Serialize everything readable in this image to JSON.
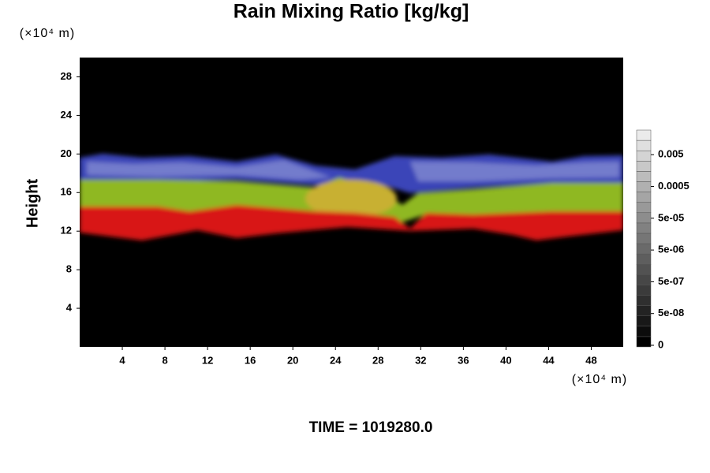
{
  "chart_data": {
    "type": "field",
    "title": "Rain Mixing Ratio [kg/kg]",
    "y_label": "Height",
    "y_unit": "(×10⁴ m)",
    "x_unit": "(×10⁴ m)",
    "xlim": [
      0,
      51
    ],
    "xticks": [
      4,
      8,
      12,
      16,
      20,
      24,
      28,
      32,
      36,
      40,
      44,
      48
    ],
    "ylim": [
      0,
      30
    ],
    "yticks": [
      4,
      8,
      12,
      16,
      20,
      24,
      28
    ],
    "colorbar_ticks": [
      0,
      {
        "value": 5e-08,
        "label": "5e-08"
      },
      {
        "value": 5e-07,
        "label": "5e-07"
      },
      {
        "value": 5e-06,
        "label": "5e-06"
      },
      {
        "value": 5e-05,
        "label": "5e-05"
      },
      {
        "value": 0.0005,
        "label": "0.0005"
      },
      {
        "value": 0.005,
        "label": "0.005"
      }
    ],
    "footer": "TIME = 1019280.0"
  }
}
